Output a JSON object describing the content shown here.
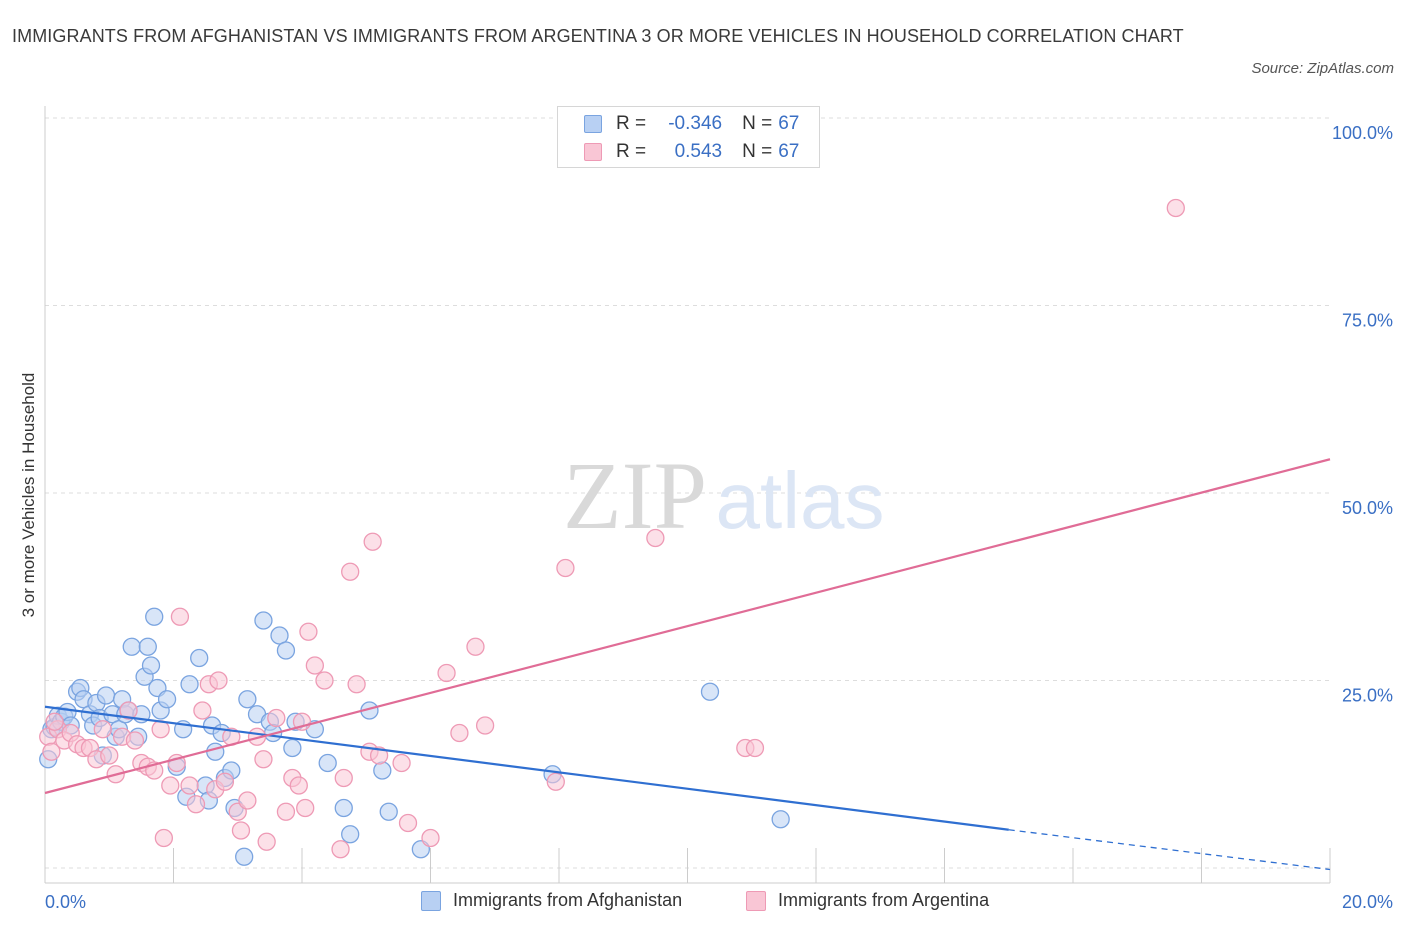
{
  "title": "IMMIGRANTS FROM AFGHANISTAN VS IMMIGRANTS FROM ARGENTINA 3 OR MORE VEHICLES IN HOUSEHOLD CORRELATION CHART",
  "source": "Source: ZipAtlas.com",
  "watermark": {
    "zip": "ZIP",
    "atlas": "atlas"
  },
  "legend": {
    "rows": [
      {
        "r_label": "R =",
        "r_value": "-0.346",
        "n_label": "N =",
        "n_value": "67",
        "fill": "#b8d0f3",
        "stroke": "#7aa4e0"
      },
      {
        "r_label": "R =",
        "r_value": "0.543",
        "n_label": "N =",
        "n_value": "67",
        "fill": "#f9c6d5",
        "stroke": "#ee9ab5"
      }
    ]
  },
  "bottom_legend": {
    "afghanistan": "Immigrants from Afghanistan",
    "argentina": "Immigrants from Argentina"
  },
  "colors": {
    "afghanistan_fill": "#b8d0f3",
    "afghanistan_stroke": "#7aa4e0",
    "afghanistan_line": "#2f6fd1",
    "argentina_fill": "#f9c6d5",
    "argentina_stroke": "#ee9ab5",
    "argentina_line": "#e06c96",
    "tick_label": "#3a6fc4",
    "grid": "#dddddd"
  },
  "chart_data": {
    "type": "scatter",
    "ylabel": "3 or more Vehicles in Household",
    "xlim": [
      0,
      20
    ],
    "ylim": [
      0,
      100
    ],
    "x_tick_labels": [
      {
        "value": 0,
        "label": "0.0%"
      },
      {
        "value": 20,
        "label": "20.0%"
      }
    ],
    "y_tick_labels": [
      {
        "value": 25,
        "label": "25.0%"
      },
      {
        "value": 50,
        "label": "50.0%"
      },
      {
        "value": 75,
        "label": "75.0%"
      },
      {
        "value": 100,
        "label": "100.0%"
      }
    ],
    "grid": true,
    "series": [
      {
        "name": "Immigrants from Afghanistan",
        "points": [
          [
            0.1,
            20.5
          ],
          [
            0.15,
            20.8
          ],
          [
            0.2,
            22.3
          ],
          [
            0.25,
            21.5
          ],
          [
            0.3,
            22.2
          ],
          [
            0.35,
            22.8
          ],
          [
            0.4,
            21
          ],
          [
            0.5,
            25.5
          ],
          [
            0.55,
            26
          ],
          [
            0.6,
            24.5
          ],
          [
            0.7,
            22.5
          ],
          [
            0.75,
            21
          ],
          [
            0.8,
            24
          ],
          [
            0.85,
            22
          ],
          [
            0.9,
            17
          ],
          [
            0.95,
            25
          ],
          [
            1.05,
            22.5
          ],
          [
            1.1,
            19.5
          ],
          [
            1.15,
            20.5
          ],
          [
            1.2,
            24.5
          ],
          [
            1.25,
            22.5
          ],
          [
            1.3,
            23
          ],
          [
            1.35,
            31.5
          ],
          [
            1.45,
            19.5
          ],
          [
            1.5,
            22.5
          ],
          [
            1.55,
            27.5
          ],
          [
            1.6,
            31.5
          ],
          [
            1.65,
            29
          ],
          [
            1.7,
            35.5
          ],
          [
            1.75,
            26
          ],
          [
            1.8,
            23
          ],
          [
            1.9,
            24.5
          ],
          [
            2.05,
            15.5
          ],
          [
            2.15,
            20.5
          ],
          [
            2.2,
            11.5
          ],
          [
            2.25,
            26.5
          ],
          [
            2.4,
            30
          ],
          [
            2.5,
            13
          ],
          [
            2.55,
            11
          ],
          [
            2.6,
            21
          ],
          [
            2.65,
            17.5
          ],
          [
            2.75,
            20
          ],
          [
            2.8,
            14
          ],
          [
            2.9,
            15
          ],
          [
            2.95,
            10
          ],
          [
            3.1,
            3.5
          ],
          [
            3.15,
            24.5
          ],
          [
            3.3,
            22.5
          ],
          [
            3.4,
            35
          ],
          [
            3.5,
            21.5
          ],
          [
            3.55,
            20
          ],
          [
            3.65,
            33
          ],
          [
            3.75,
            31
          ],
          [
            3.85,
            18
          ],
          [
            3.9,
            21.5
          ],
          [
            4.2,
            20.5
          ],
          [
            4.4,
            16
          ],
          [
            4.65,
            10
          ],
          [
            4.75,
            6.5
          ],
          [
            5.05,
            23
          ],
          [
            5.25,
            15
          ],
          [
            5.35,
            9.5
          ],
          [
            5.85,
            4.5
          ],
          [
            7.9,
            14.5
          ],
          [
            10.35,
            25.5
          ],
          [
            11.45,
            8.5
          ],
          [
            0.05,
            16.5
          ]
        ]
      },
      {
        "name": "Immigrants from Argentina",
        "points": [
          [
            0.05,
            19.5
          ],
          [
            0.1,
            17.5
          ],
          [
            0.2,
            20.5
          ],
          [
            0.3,
            19
          ],
          [
            0.4,
            20
          ],
          [
            0.5,
            18.5
          ],
          [
            0.6,
            18
          ],
          [
            0.7,
            18
          ],
          [
            0.8,
            16.5
          ],
          [
            0.9,
            20.5
          ],
          [
            1.0,
            17
          ],
          [
            1.1,
            14.5
          ],
          [
            1.2,
            19.5
          ],
          [
            1.3,
            23
          ],
          [
            1.4,
            19
          ],
          [
            1.5,
            16
          ],
          [
            1.6,
            15.5
          ],
          [
            1.7,
            15
          ],
          [
            1.8,
            20.5
          ],
          [
            1.85,
            6
          ],
          [
            1.95,
            13
          ],
          [
            2.05,
            16
          ],
          [
            2.1,
            35.5
          ],
          [
            2.25,
            13
          ],
          [
            2.35,
            10.5
          ],
          [
            2.45,
            23
          ],
          [
            2.55,
            26.5
          ],
          [
            2.65,
            12.5
          ],
          [
            2.7,
            27
          ],
          [
            2.8,
            13.5
          ],
          [
            2.9,
            19.5
          ],
          [
            3.0,
            9.5
          ],
          [
            3.05,
            7
          ],
          [
            3.15,
            11
          ],
          [
            3.3,
            19.5
          ],
          [
            3.4,
            16.5
          ],
          [
            3.45,
            5.5
          ],
          [
            3.6,
            22
          ],
          [
            3.75,
            9.5
          ],
          [
            3.85,
            14
          ],
          [
            3.95,
            13
          ],
          [
            4.0,
            21.5
          ],
          [
            4.05,
            10
          ],
          [
            4.1,
            33.5
          ],
          [
            4.2,
            29
          ],
          [
            4.35,
            27
          ],
          [
            4.6,
            4.5
          ],
          [
            4.65,
            14
          ],
          [
            4.75,
            41.5
          ],
          [
            4.85,
            26.5
          ],
          [
            5.05,
            17.5
          ],
          [
            5.1,
            45.5
          ],
          [
            5.2,
            17
          ],
          [
            5.55,
            16
          ],
          [
            5.65,
            8
          ],
          [
            6.0,
            6
          ],
          [
            6.25,
            28
          ],
          [
            6.45,
            20
          ],
          [
            6.7,
            31.5
          ],
          [
            6.85,
            21
          ],
          [
            7.95,
            13.5
          ],
          [
            8.1,
            42
          ],
          [
            9.5,
            46
          ],
          [
            10.9,
            18
          ],
          [
            11.05,
            18
          ],
          [
            17.6,
            90
          ],
          [
            0.15,
            21.5
          ]
        ]
      }
    ],
    "trend_lines": [
      {
        "name": "Immigrants from Afghanistan",
        "solid": [
          [
            0,
            23.5
          ],
          [
            15,
            7.1
          ]
        ],
        "dashed": [
          [
            15,
            7.1
          ],
          [
            20,
            1.8
          ]
        ]
      },
      {
        "name": "Immigrants from Argentina",
        "solid": [
          [
            0,
            12
          ],
          [
            20,
            56.5
          ]
        ]
      }
    ]
  }
}
